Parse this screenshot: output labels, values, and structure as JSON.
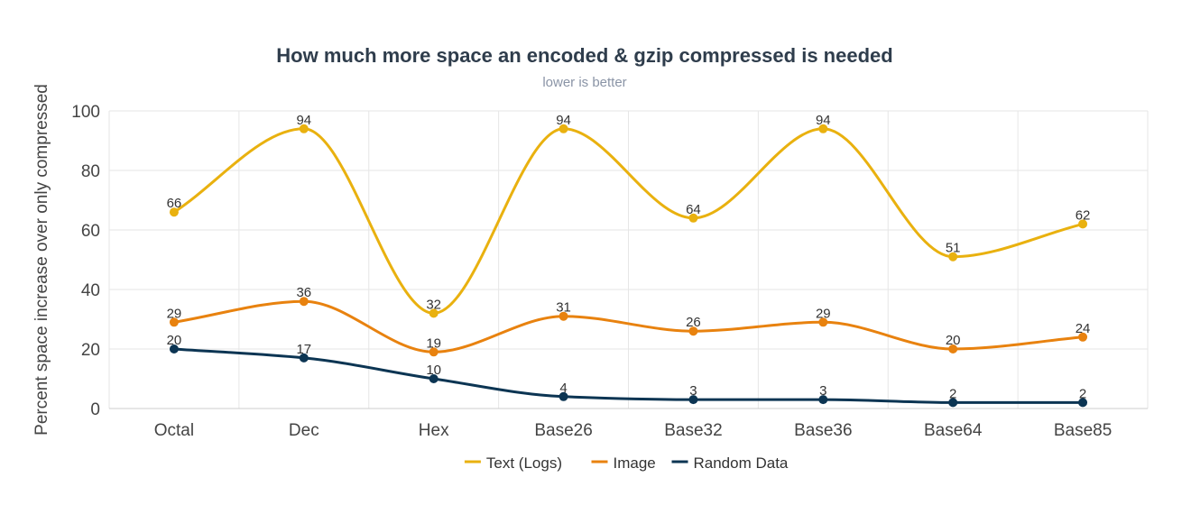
{
  "chart_data": {
    "type": "line",
    "title": "How much more space an encoded & gzip compressed is needed",
    "subtitle": "lower is better",
    "xlabel": "",
    "ylabel": "Percent space increase over only compressed",
    "ylim": [
      0,
      100
    ],
    "yticks": [
      0,
      20,
      40,
      60,
      80,
      100
    ],
    "grid": true,
    "categories": [
      "Octal",
      "Dec",
      "Hex",
      "Base26",
      "Base32",
      "Base36",
      "Base64",
      "Base85"
    ],
    "series": [
      {
        "name": "Text (Logs)",
        "color": "#e9b10f",
        "values": [
          66,
          94,
          32,
          94,
          64,
          94,
          51,
          62
        ]
      },
      {
        "name": "Image",
        "color": "#e8820f",
        "values": [
          29,
          36,
          19,
          31,
          26,
          29,
          20,
          24
        ]
      },
      {
        "name": "Random Data",
        "color": "#0c3553",
        "values": [
          20,
          17,
          10,
          4,
          3,
          3,
          2,
          2
        ]
      }
    ],
    "legend_position": "bottom-center"
  }
}
